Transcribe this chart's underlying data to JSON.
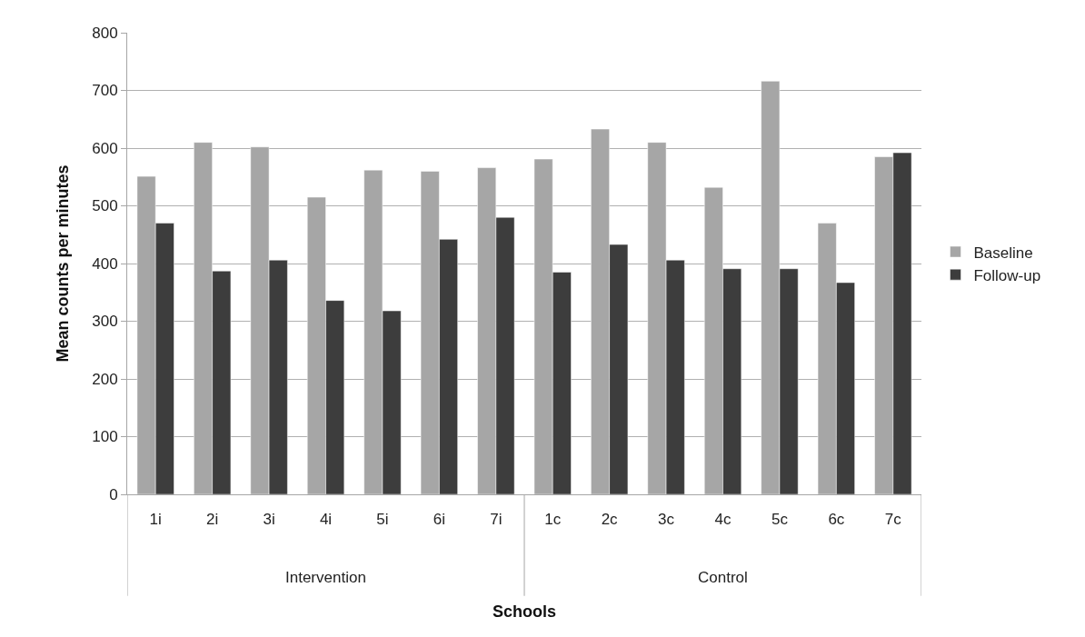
{
  "chart_data": {
    "type": "bar",
    "xlabel": "Schools",
    "ylabel": "Mean counts per minutes",
    "categories": [
      "1i",
      "2i",
      "3i",
      "4i",
      "5i",
      "6i",
      "7i",
      "1c",
      "2c",
      "3c",
      "4c",
      "5c",
      "6c",
      "7c"
    ],
    "series": [
      {
        "name": "Baseline",
        "color": "#a6a6a6",
        "values": [
          551,
          610,
          602,
          515,
          562,
          560,
          566,
          581,
          633,
          610,
          532,
          716,
          470,
          585
        ]
      },
      {
        "name": "Follow-up",
        "color": "#3d3d3d",
        "values": [
          470,
          387,
          406,
          336,
          318,
          442,
          480,
          385,
          433,
          406,
          391,
          391,
          367,
          592
        ]
      }
    ],
    "annotations": [
      "Intervention",
      "Control"
    ],
    "ylim": [
      0,
      800
    ],
    "yticks": [
      0,
      100,
      200,
      300,
      400,
      500,
      600,
      700,
      800
    ],
    "grid": "y",
    "legend": "right"
  }
}
